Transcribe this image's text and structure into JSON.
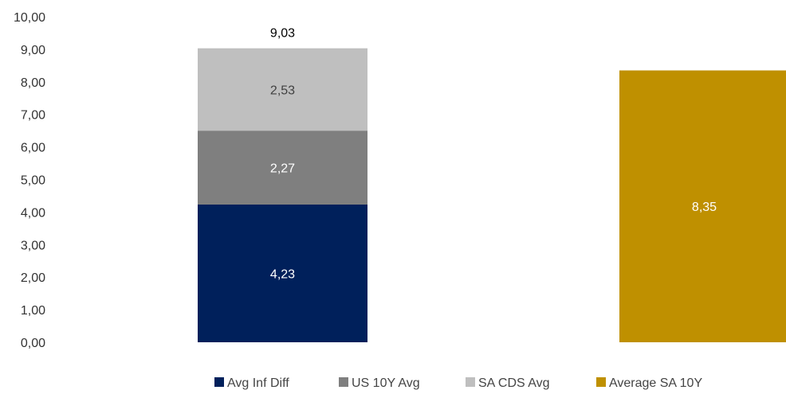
{
  "chart_data": {
    "type": "bar",
    "stacked": true,
    "categories": [
      "",
      ""
    ],
    "ylim": [
      0,
      10
    ],
    "yticks": [
      0,
      1,
      2,
      3,
      4,
      5,
      6,
      7,
      8,
      9,
      10
    ],
    "ytick_labels": [
      "0,00",
      "1,00",
      "2,00",
      "3,00",
      "4,00",
      "5,00",
      "6,00",
      "7,00",
      "8,00",
      "9,00",
      "10,00"
    ],
    "grid": false,
    "legend_position": "bottom",
    "series": [
      {
        "name": "Avg Inf Diff",
        "color": "#00205b",
        "values": [
          4.23,
          null
        ],
        "labels": [
          "4,23",
          ""
        ],
        "label_color": "#ffffff"
      },
      {
        "name": "US 10Y Avg",
        "color": "#7f7f7f",
        "values": [
          2.27,
          null
        ],
        "labels": [
          "2,27",
          ""
        ],
        "label_color": "#ffffff"
      },
      {
        "name": "SA CDS Avg",
        "color": "#bfbfbf",
        "values": [
          2.53,
          null
        ],
        "labels": [
          "2,53",
          ""
        ],
        "label_color": "#404040"
      },
      {
        "name": "Average SA 10Y",
        "color": "#bf9000",
        "values": [
          null,
          8.35
        ],
        "labels": [
          "",
          "8,35"
        ],
        "label_color": "#ffffff"
      }
    ],
    "totals": [
      "9,03",
      ""
    ]
  }
}
